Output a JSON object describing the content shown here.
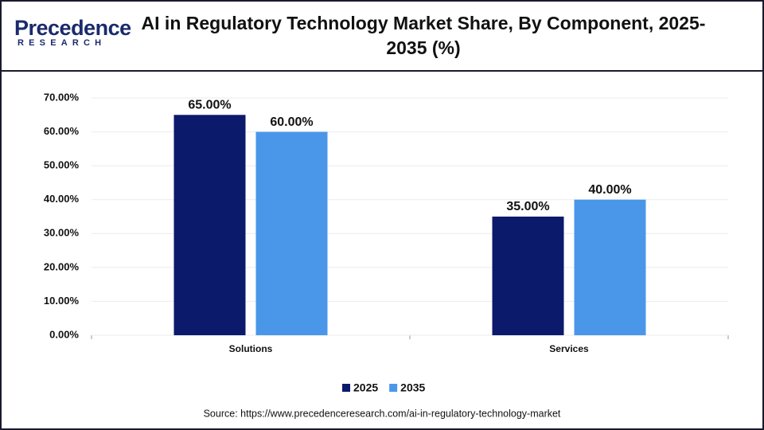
{
  "logo": {
    "name": "Precedence",
    "tagline": "RESEARCH"
  },
  "chart_data": {
    "type": "bar",
    "title": "AI in Regulatory Technology Market Share, By Component, 2025-2035 (%)",
    "categories": [
      "Solutions",
      "Services"
    ],
    "series": [
      {
        "name": "2025",
        "color": "#0b1a6b",
        "values": [
          65,
          35
        ],
        "value_labels": [
          "65.00%",
          "35.00%"
        ]
      },
      {
        "name": "2035",
        "color": "#4a97ea",
        "values": [
          60,
          40
        ],
        "value_labels": [
          "60.00%",
          "40.00%"
        ]
      }
    ],
    "ylim": [
      0,
      70
    ],
    "yticks": [
      {
        "value": 0,
        "label": "0.00%"
      },
      {
        "value": 10,
        "label": "10.00%"
      },
      {
        "value": 20,
        "label": "20.00%"
      },
      {
        "value": 30,
        "label": "30.00%"
      },
      {
        "value": 40,
        "label": "40.00%"
      },
      {
        "value": 50,
        "label": "50.00%"
      },
      {
        "value": 60,
        "label": "60.00%"
      },
      {
        "value": 70,
        "label": "70.00%"
      }
    ],
    "grid": true,
    "legend": "bottom",
    "source": "Source: https://www.precedenceresearch.com/ai-in-regulatory-technology-market"
  }
}
